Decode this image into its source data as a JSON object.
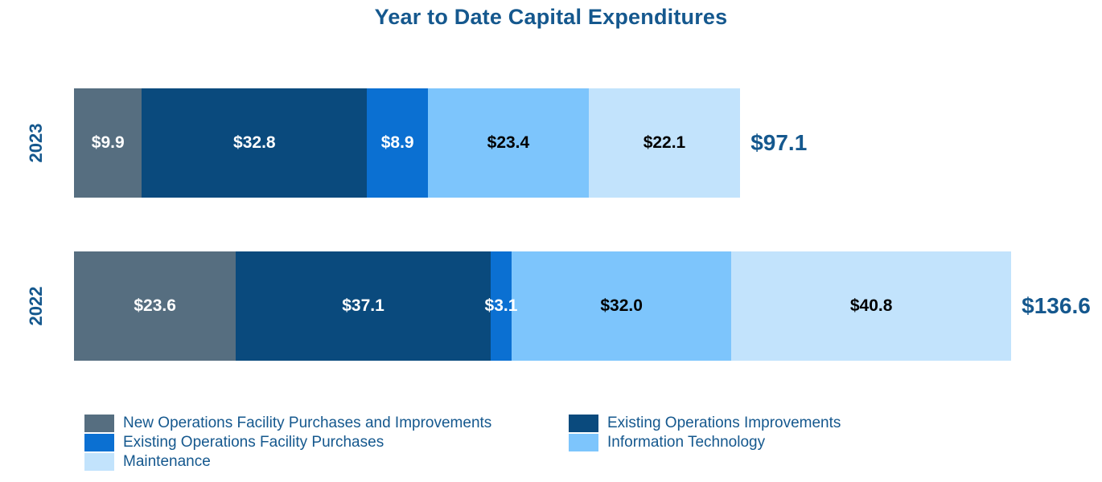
{
  "chart_data": {
    "type": "bar",
    "variant": "horizontal-stacked",
    "title": "Year to Date Capital Expenditures",
    "categories": [
      "2023",
      "2022"
    ],
    "series": [
      {
        "name": "New Operations Facility Purchases and Improvements",
        "color": "#566E80",
        "label_color": "#FFFFFF",
        "values": [
          9.9,
          23.6
        ],
        "labels": [
          "$9.9",
          "$23.6"
        ]
      },
      {
        "name": "Existing Operations Improvements",
        "color": "#0A4A7D",
        "label_color": "#FFFFFF",
        "values": [
          32.8,
          37.1
        ],
        "labels": [
          "$32.8",
          "$37.1"
        ]
      },
      {
        "name": "Existing Operations Facility Purchases",
        "color": "#0B70D2",
        "label_color": "#FFFFFF",
        "values": [
          8.9,
          3.1
        ],
        "labels": [
          "$8.9",
          "$3.1"
        ]
      },
      {
        "name": "Information Technology",
        "color": "#7DC5FC",
        "label_color": "#000000",
        "values": [
          23.4,
          32.0
        ],
        "labels": [
          "$23.4",
          "$32.0"
        ]
      },
      {
        "name": "Maintenance",
        "color": "#C2E3FC",
        "label_color": "#000000",
        "values": [
          22.1,
          40.8
        ],
        "labels": [
          "$22.1",
          "$40.8"
        ]
      }
    ],
    "totals": [
      {
        "label": "$97.1",
        "value": 97.1
      },
      {
        "label": "$136.6",
        "value": 136.6
      }
    ],
    "axes": {
      "value_axis_visible": false,
      "gridlines": false,
      "category_axis_labels": [
        "2023",
        "2022"
      ]
    },
    "legend": {
      "position": "bottom",
      "columns": [
        [
          "New Operations Facility Purchases and Improvements",
          "Existing Operations Facility Purchases",
          "Maintenance"
        ],
        [
          "Existing Operations Improvements",
          "Information Technology"
        ]
      ]
    },
    "text_color": "#15588E"
  }
}
